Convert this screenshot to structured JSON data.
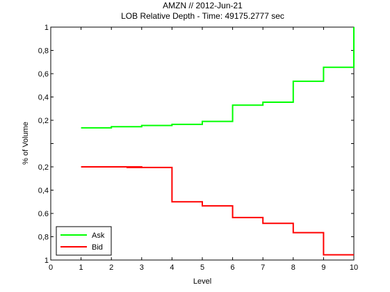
{
  "chart_data": {
    "type": "line",
    "subtype": "step",
    "title_line1": "AMZN // 2012-Jun-21",
    "title_line2": "LOB Relative Depth - Time: 49175.2777 sec",
    "xlabel": "Level",
    "ylabel": "% of Volume",
    "xlim": [
      0,
      10
    ],
    "x_ticks": [
      "0",
      "1",
      "2",
      "3",
      "4",
      "5",
      "6",
      "7",
      "8",
      "9",
      "10"
    ],
    "y_ticks_upper": [
      "0,2",
      "0,4",
      "0,6",
      "0,8",
      "1"
    ],
    "y_ticks_lower": [
      "0,2",
      "0,4",
      "0.6",
      "0,8",
      "1"
    ],
    "grid": false,
    "legend_position": "bottom-left",
    "x": [
      1,
      2,
      3,
      4,
      5,
      6,
      7,
      8,
      9,
      10
    ],
    "series": [
      {
        "name": "Ask",
        "color": "#00ff00",
        "side": "upper",
        "values": [
          0.135,
          0.145,
          0.155,
          0.165,
          0.19,
          0.33,
          0.355,
          0.535,
          0.655,
          1.0
        ]
      },
      {
        "name": "Bid",
        "color": "#ff0000",
        "side": "lower",
        "values": [
          0.2,
          0.2,
          0.205,
          0.5,
          0.535,
          0.635,
          0.685,
          0.765,
          0.955,
          0.955
        ],
        "extra_steps": [
          [
            2.5,
            0.205
          ]
        ]
      }
    ]
  }
}
